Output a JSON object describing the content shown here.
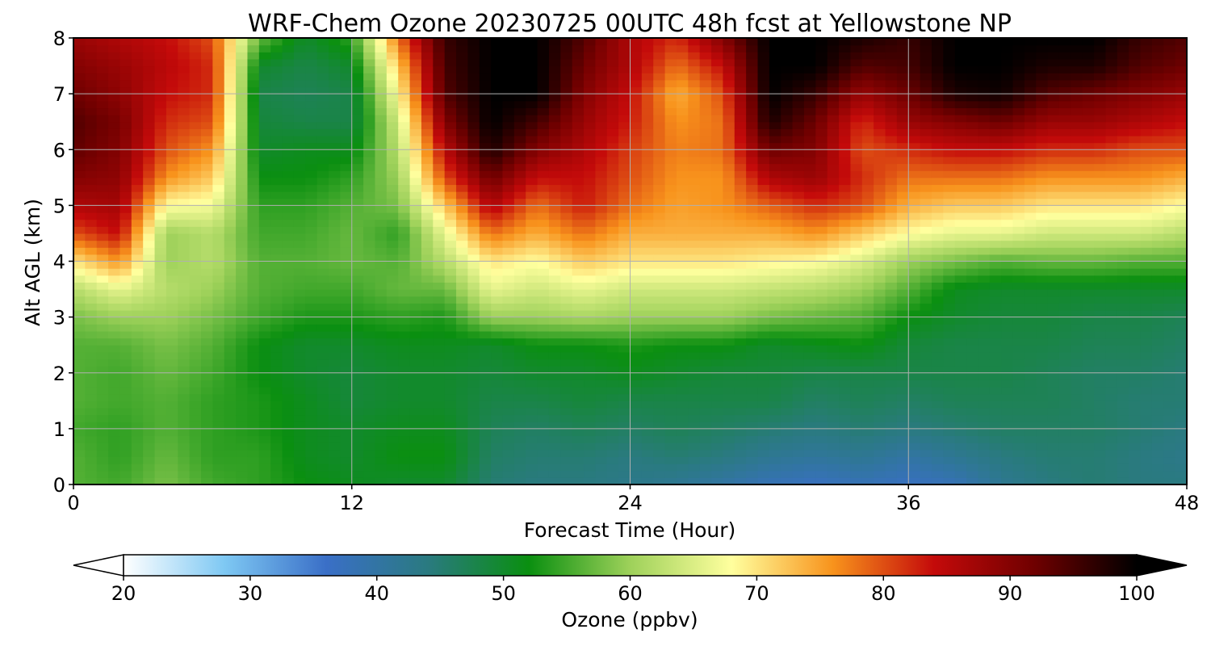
{
  "chart_data": {
    "type": "heatmap",
    "title": "WRF-Chem Ozone  20230725 00UTC 48h fcst at Yellowstone NP",
    "xlabel": "Forecast Time (Hour)",
    "ylabel": "Alt AGL (km)",
    "xlim": [
      0,
      48
    ],
    "ylim": [
      0,
      8
    ],
    "x_ticks": [
      "0",
      "12",
      "24",
      "36",
      "48"
    ],
    "y_ticks": [
      "0",
      "1",
      "2",
      "3",
      "4",
      "5",
      "6",
      "7",
      "8"
    ],
    "grid": true,
    "colorbar": {
      "label": "Ozone  (ppbv)",
      "range": [
        20,
        100
      ],
      "ticks": [
        "20",
        "30",
        "40",
        "50",
        "60",
        "70",
        "80",
        "90",
        "100"
      ],
      "extend": "both",
      "colors": [
        "#ffffff",
        "#7ec8f3",
        "#3a6fc7",
        "#2a7a80",
        "#0a8f10",
        "#9ed15a",
        "#ffff9e",
        "#f8931c",
        "#c40a0a",
        "#6e0000",
        "#000000"
      ]
    },
    "times": [
      0,
      2,
      4,
      6,
      8,
      10,
      12,
      14,
      16,
      18,
      20,
      22,
      24,
      26,
      28,
      30,
      32,
      34,
      36,
      38,
      40,
      42,
      44,
      46,
      48
    ],
    "altitudes": [
      0,
      0.5,
      1,
      1.5,
      2,
      2.5,
      3,
      3.5,
      4,
      4.5,
      5,
      5.5,
      6,
      6.5,
      7,
      7.5,
      8
    ],
    "ozone_ppbv": [
      [
        56,
        56,
        55,
        56,
        56,
        56,
        58,
        62,
        70,
        80,
        86,
        90,
        93,
        94,
        92,
        90,
        88
      ],
      [
        55,
        54,
        54,
        55,
        55,
        56,
        60,
        66,
        76,
        84,
        87,
        89,
        90,
        91,
        89,
        88,
        86
      ],
      [
        58,
        57,
        56,
        56,
        57,
        58,
        60,
        62,
        60,
        60,
        68,
        76,
        80,
        82,
        84,
        85,
        84
      ],
      [
        55,
        54,
        54,
        54,
        55,
        56,
        58,
        60,
        62,
        62,
        67,
        72,
        76,
        80,
        82,
        82,
        80
      ],
      [
        54,
        54,
        53,
        53,
        52,
        52,
        55,
        56,
        56,
        55,
        54,
        52,
        50,
        49,
        48,
        50,
        57
      ],
      [
        52,
        51,
        51,
        51,
        50,
        50,
        53,
        55,
        56,
        55,
        54,
        52,
        51,
        48,
        47,
        48,
        50
      ],
      [
        51,
        50,
        50,
        49,
        49,
        50,
        53,
        55,
        57,
        57,
        56,
        54,
        51,
        48,
        48,
        50,
        54
      ],
      [
        50,
        52,
        51,
        50,
        50,
        51,
        54,
        57,
        56,
        54,
        58,
        60,
        62,
        64,
        68,
        72,
        78
      ],
      [
        50,
        52,
        51,
        50,
        50,
        51,
        53,
        57,
        62,
        66,
        72,
        80,
        85,
        90,
        94,
        95,
        96
      ],
      [
        45,
        46,
        47,
        48,
        49,
        50,
        60,
        66,
        70,
        78,
        86,
        92,
        98,
        100,
        100,
        100,
        100
      ],
      [
        44,
        45,
        46,
        48,
        50,
        52,
        60,
        64,
        68,
        74,
        78,
        84,
        90,
        95,
        100,
        100,
        100
      ],
      [
        44,
        45,
        47,
        49,
        50,
        52,
        61,
        66,
        72,
        78,
        83,
        84,
        86,
        88,
        90,
        92,
        94
      ],
      [
        43,
        44,
        46,
        48,
        51,
        53,
        60,
        64,
        70,
        74,
        78,
        80,
        81,
        83,
        84,
        86,
        86
      ],
      [
        42,
        45,
        47,
        48,
        50,
        52,
        60,
        64,
        70,
        74,
        75,
        76,
        77,
        76,
        74,
        78,
        82
      ],
      [
        40,
        44,
        46,
        48,
        49,
        52,
        60,
        64,
        70,
        74,
        76,
        76,
        78,
        78,
        80,
        84,
        90
      ],
      [
        38,
        42,
        45,
        48,
        49,
        50,
        58,
        63,
        69,
        74,
        79,
        86,
        92,
        98,
        100,
        100,
        100
      ],
      [
        37,
        41,
        44,
        46,
        48,
        51,
        57,
        62,
        68,
        76,
        82,
        88,
        90,
        92,
        96,
        100,
        100
      ],
      [
        38,
        42,
        45,
        47,
        48,
        52,
        56,
        60,
        65,
        72,
        80,
        82,
        80,
        82,
        88,
        94,
        98
      ],
      [
        37,
        40,
        44,
        46,
        48,
        49,
        52,
        56,
        60,
        68,
        74,
        78,
        82,
        88,
        92,
        95,
        96
      ],
      [
        38,
        42,
        45,
        47,
        48,
        48,
        50,
        51,
        58,
        66,
        72,
        78,
        84,
        90,
        98,
        100,
        100
      ],
      [
        42,
        44,
        46,
        47,
        48,
        48,
        49,
        50,
        56,
        66,
        72,
        78,
        84,
        92,
        99,
        100,
        100
      ],
      [
        44,
        45,
        46,
        47,
        47,
        48,
        49,
        50,
        57,
        64,
        70,
        76,
        82,
        88,
        94,
        98,
        100
      ],
      [
        45,
        45,
        46,
        46,
        46,
        47,
        48,
        50,
        57,
        64,
        70,
        76,
        82,
        88,
        92,
        98,
        100
      ],
      [
        44,
        44,
        45,
        45,
        46,
        47,
        48,
        50,
        56,
        64,
        70,
        76,
        80,
        86,
        90,
        94,
        96
      ],
      [
        44,
        43,
        44,
        45,
        45,
        46,
        47,
        50,
        56,
        62,
        68,
        74,
        80,
        84,
        88,
        92,
        94
      ]
    ]
  }
}
